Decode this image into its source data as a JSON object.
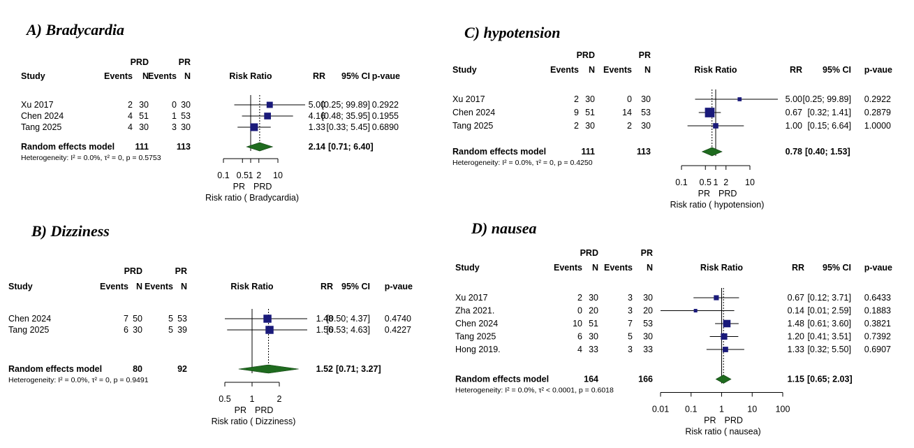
{
  "chart_data": [
    {
      "type": "forest",
      "title": "A) Bradycardia",
      "columns": {
        "group1": "PRD",
        "group2": "PR",
        "study": "Study",
        "events": "Events",
        "n": "N",
        "plot": "Risk Ratio",
        "rr": "RR",
        "ci": "95% CI",
        "p": "p-vaue"
      },
      "studies": [
        {
          "name": "Xu 2017",
          "e1": "2",
          "n1": "30",
          "e2": "0",
          "n2": "30",
          "rr": 5.0,
          "lo": 0.25,
          "hi": 99.89,
          "rr_text": "5.00",
          "ci_text": "[0.25; 99.89]",
          "p_text": "0.2922",
          "weight": 0.24
        },
        {
          "name": "Chen 2024",
          "e1": "4",
          "n1": "51",
          "e2": "1",
          "n2": "53",
          "rr": 4.16,
          "lo": 0.48,
          "hi": 35.95,
          "rr_text": "4.16",
          "ci_text": "[0.48; 35.95]",
          "p_text": "0.1955",
          "weight": 0.31
        },
        {
          "name": "Tang 2025",
          "e1": "4",
          "n1": "30",
          "e2": "3",
          "n2": "30",
          "rr": 1.33,
          "lo": 0.33,
          "hi": 5.45,
          "rr_text": "1.33",
          "ci_text": "[0.33; 5.45]",
          "p_text": "0.6890",
          "weight": 0.45
        }
      ],
      "pooled": {
        "label": "Random effects model",
        "n1": "111",
        "n2": "113",
        "rr": 2.14,
        "lo": 0.71,
        "hi": 6.4,
        "rr_text": "2.14",
        "ci_text": "[0.71; 6.40]"
      },
      "heterogeneity": "Heterogeneity: I² = 0.0%, τ² = 0, p = 0.5753",
      "x_scale": "log",
      "xlim": [
        0.1,
        10
      ],
      "ticks": [
        {
          "v": 0.1,
          "label": "0.1"
        },
        {
          "v": 0.5,
          "label": "0.5"
        },
        {
          "v": 1,
          "label": "1"
        },
        {
          "v": 2,
          "label": "2"
        },
        {
          "v": 10,
          "label": "10"
        }
      ],
      "favours": [
        "PR",
        "PRD"
      ],
      "xlabel": "Risk ratio ( Bradycardia)"
    },
    {
      "type": "forest",
      "title": "B) Dizziness",
      "columns": {
        "group1": "PRD",
        "group2": "PR",
        "study": "Study",
        "events": "Events",
        "n": "N",
        "plot": "Risk Ratio",
        "rr": "RR",
        "ci": "95% CI",
        "p": "p-vaue"
      },
      "studies": [
        {
          "name": "Chen 2024",
          "e1": "7",
          "n1": "50",
          "e2": "5",
          "n2": "53",
          "rr": 1.48,
          "lo": 0.5,
          "hi": 4.37,
          "rr_text": "1.48",
          "ci_text": "[0.50; 4.37]",
          "p_text": "0.4740",
          "weight": 0.5
        },
        {
          "name": "Tang 2025",
          "e1": "6",
          "n1": "30",
          "e2": "5",
          "n2": "39",
          "rr": 1.56,
          "lo": 0.53,
          "hi": 4.63,
          "rr_text": "1.56",
          "ci_text": "[0.53; 4.63]",
          "p_text": "0.4227",
          "weight": 0.5
        }
      ],
      "pooled": {
        "label": "Random effects model",
        "n1": "80",
        "n2": "92",
        "rr": 1.52,
        "lo": 0.71,
        "hi": 3.27,
        "rr_text": "1.52",
        "ci_text": "[0.71; 3.27]"
      },
      "heterogeneity": "Heterogeneity: I² = 0.0%, τ² = 0, p = 0.9491",
      "x_scale": "log",
      "xlim": [
        0.5,
        2
      ],
      "ticks": [
        {
          "v": 0.5,
          "label": "0.5"
        },
        {
          "v": 1,
          "label": "1"
        },
        {
          "v": 2,
          "label": "2"
        }
      ],
      "favours": [
        "PR",
        "PRD"
      ],
      "xlabel": "Risk ratio ( Dizziness)"
    },
    {
      "type": "forest",
      "title": "C) hypotension",
      "columns": {
        "group1": "PRD",
        "group2": "PR",
        "study": "Study",
        "events": "Events",
        "n": "N",
        "plot": "Risk Ratio",
        "rr": "RR",
        "ci": "95% CI",
        "p": "p-vaue"
      },
      "studies": [
        {
          "name": "Xu 2017",
          "e1": "2",
          "n1": "30",
          "e2": "0",
          "n2": "30",
          "rr": 5.0,
          "lo": 0.25,
          "hi": 99.89,
          "rr_text": "5.00",
          "ci_text": "[0.25; 99.89]",
          "p_text": "0.2922",
          "weight": 0.05
        },
        {
          "name": "Chen 2024",
          "e1": "9",
          "n1": "51",
          "e2": "14",
          "n2": "53",
          "rr": 0.67,
          "lo": 0.32,
          "hi": 1.41,
          "rr_text": "0.67",
          "ci_text": "[0.32; 1.41]",
          "p_text": "0.2879",
          "weight": 0.8
        },
        {
          "name": "Tang 2025",
          "e1": "2",
          "n1": "30",
          "e2": "2",
          "n2": "30",
          "rr": 1.0,
          "lo": 0.15,
          "hi": 6.64,
          "rr_text": "1.00",
          "ci_text": "[0.15; 6.64]",
          "p_text": "1.0000",
          "weight": 0.15
        }
      ],
      "pooled": {
        "label": "Random effects model",
        "n1": "111",
        "n2": "113",
        "rr": 0.78,
        "lo": 0.4,
        "hi": 1.53,
        "rr_text": "0.78",
        "ci_text": "[0.40; 1.53]"
      },
      "heterogeneity": "Heterogeneity: I² = 0.0%, τ² = 0, p = 0.4250",
      "x_scale": "log",
      "xlim": [
        0.1,
        10
      ],
      "ticks": [
        {
          "v": 0.1,
          "label": "0.1"
        },
        {
          "v": 0.5,
          "label": "0.5"
        },
        {
          "v": 1,
          "label": "1"
        },
        {
          "v": 2,
          "label": "2"
        },
        {
          "v": 10,
          "label": "10"
        }
      ],
      "favours": [
        "PR",
        "PRD"
      ],
      "xlabel": "Risk ratio ( hypotension)"
    },
    {
      "type": "forest",
      "title": "D) nausea",
      "columns": {
        "group1": "PRD",
        "group2": "PR",
        "study": "Study",
        "events": "Events",
        "n": "N",
        "plot": "Risk Ratio",
        "rr": "RR",
        "ci": "95% CI",
        "p": "p-vaue"
      },
      "studies": [
        {
          "name": "Xu 2017",
          "e1": "2",
          "n1": "30",
          "e2": "3",
          "n2": "30",
          "rr": 0.67,
          "lo": 0.12,
          "hi": 3.71,
          "rr_text": "0.67",
          "ci_text": "[0.12; 3.71]",
          "p_text": "0.6433",
          "weight": 0.12
        },
        {
          "name": "Zha 2021.",
          "e1": "0",
          "n1": "20",
          "e2": "3",
          "n2": "20",
          "rr": 0.14,
          "lo": 0.01,
          "hi": 2.59,
          "rr_text": "0.14",
          "ci_text": "[0.01; 2.59]",
          "p_text": "0.1883",
          "weight": 0.03
        },
        {
          "name": "Chen 2024",
          "e1": "10",
          "n1": "51",
          "e2": "7",
          "n2": "53",
          "rr": 1.48,
          "lo": 0.61,
          "hi": 3.6,
          "rr_text": "1.48",
          "ci_text": "[0.61; 3.60]",
          "p_text": "0.3821",
          "weight": 0.4
        },
        {
          "name": "Tang 2025",
          "e1": "6",
          "n1": "30",
          "e2": "5",
          "n2": "30",
          "rr": 1.2,
          "lo": 0.41,
          "hi": 3.51,
          "rr_text": "1.20",
          "ci_text": "[0.41; 3.51]",
          "p_text": "0.7392",
          "weight": 0.27
        },
        {
          "name": "Hong 2019.",
          "e1": "4",
          "n1": "33",
          "e2": "3",
          "n2": "33",
          "rr": 1.33,
          "lo": 0.32,
          "hi": 5.5,
          "rr_text": "1.33",
          "ci_text": "[0.32; 5.50]",
          "p_text": "0.6907",
          "weight": 0.16
        }
      ],
      "pooled": {
        "label": "Random effects model",
        "n1": "164",
        "n2": "166",
        "rr": 1.15,
        "lo": 0.65,
        "hi": 2.03,
        "rr_text": "1.15",
        "ci_text": "[0.65; 2.03]"
      },
      "heterogeneity": "Heterogeneity: I² = 0.0%, τ² < 0.0001, p = 0.6018",
      "x_scale": "log",
      "xlim": [
        0.01,
        100
      ],
      "ticks": [
        {
          "v": 0.01,
          "label": "0.01"
        },
        {
          "v": 0.1,
          "label": "0.1"
        },
        {
          "v": 1,
          "label": "1"
        },
        {
          "v": 10,
          "label": "10"
        },
        {
          "v": 100,
          "label": "100"
        }
      ],
      "favours": [
        "PR",
        "PRD"
      ],
      "xlabel": "Risk ratio ( nausea)"
    }
  ],
  "colors": {
    "square": "#1a1a7a",
    "diamond": "#1f6b1f",
    "line": "#000000"
  }
}
